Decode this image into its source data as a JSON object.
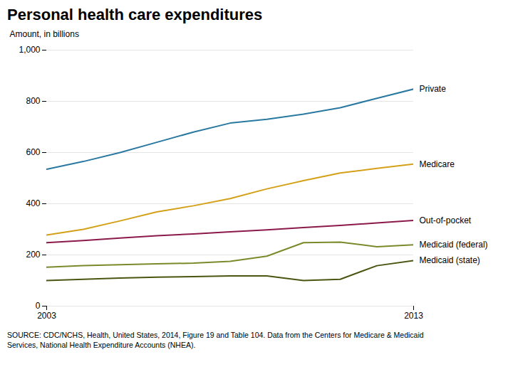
{
  "chart_data": {
    "type": "line",
    "title": "Personal health care expenditures",
    "caption": [
      "SOURCE: CDC/NCHS, Health, United States, 2014, Figure 19 and Table 104. Data from the Centers for Medicare & Medicaid",
      "Services, National Health Expenditure Accounts (NHEA)."
    ],
    "ylabel": "Amount, in billions",
    "x": [
      2003,
      2004,
      2005,
      2006,
      2007,
      2008,
      2009,
      2010,
      2011,
      2012,
      2013
    ],
    "series": [
      {
        "name": "Private",
        "color": "#2878A0",
        "values": [
          535,
          565,
          600,
          640,
          680,
          715,
          730,
          750,
          775,
          812,
          848
        ]
      },
      {
        "name": "Medicare",
        "color": "#D4A017",
        "values": [
          278,
          300,
          333,
          368,
          392,
          420,
          458,
          490,
          520,
          538,
          555
        ]
      },
      {
        "name": "Out-of-pocket",
        "color": "#8B1A4A",
        "values": [
          248,
          256,
          266,
          275,
          282,
          290,
          298,
          307,
          315,
          325,
          335
        ]
      },
      {
        "name": "Medicaid (federal)",
        "color": "#7A8A2A",
        "values": [
          152,
          158,
          162,
          165,
          168,
          175,
          195,
          248,
          250,
          232,
          240
        ]
      },
      {
        "name": "Medicaid (state)",
        "color": "#4A5510",
        "values": [
          100,
          105,
          110,
          113,
          115,
          118,
          118,
          100,
          105,
          158,
          178
        ]
      }
    ],
    "xlim": [
      2003,
      2013
    ],
    "xticks": [
      {
        "value": 2003,
        "label": "2003"
      },
      {
        "value": 2013,
        "label": "2013"
      }
    ],
    "ylim": [
      0,
      1000
    ],
    "yticks": [
      0,
      200,
      400,
      600,
      800,
      {
        "value": 1000,
        "label": "1,000"
      }
    ],
    "grid": true
  }
}
